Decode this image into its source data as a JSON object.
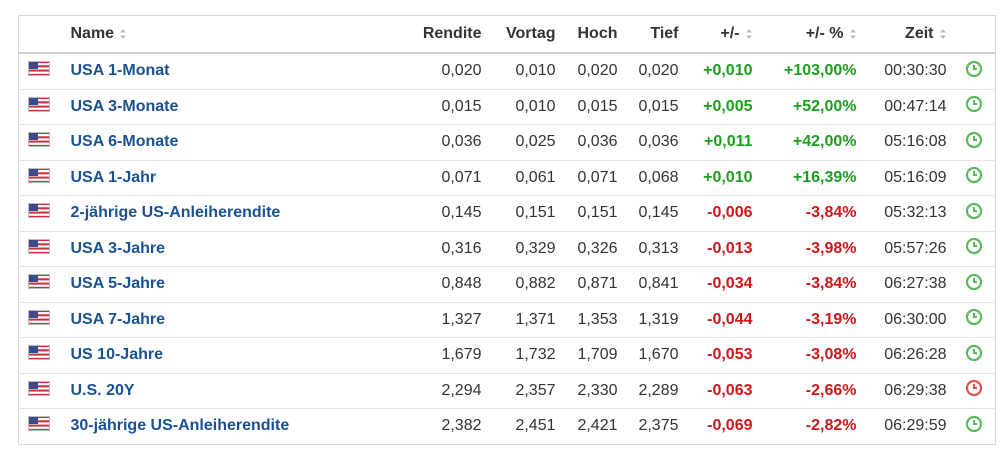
{
  "table": {
    "header": [
      "Name",
      "Rendite",
      "Vortag",
      "Hoch",
      "Tief",
      "+/-",
      "+/- %",
      "Zeit"
    ],
    "sortable": [
      true,
      false,
      false,
      false,
      false,
      true,
      true,
      true
    ],
    "rows": [
      [
        "USA 1-Monat",
        "0,020",
        "0,010",
        "0,020",
        "0,020",
        "+0,010",
        "+103,00%",
        "00:30:30"
      ],
      [
        "USA 3-Monate",
        "0,015",
        "0,010",
        "0,015",
        "0,015",
        "+0,005",
        "+52,00%",
        "00:47:14"
      ],
      [
        "USA 6-Monate",
        "0,036",
        "0,025",
        "0,036",
        "0,036",
        "+0,011",
        "+42,00%",
        "05:16:08"
      ],
      [
        "USA 1-Jahr",
        "0,071",
        "0,061",
        "0,071",
        "0,068",
        "+0,010",
        "+16,39%",
        "05:16:09"
      ],
      [
        "2-jährige US-Anleiherendite",
        "0,145",
        "0,151",
        "0,151",
        "0,145",
        "-0,006",
        "-3,84%",
        "05:32:13"
      ],
      [
        "USA 3-Jahre",
        "0,316",
        "0,329",
        "0,326",
        "0,313",
        "-0,013",
        "-3,98%",
        "05:57:26"
      ],
      [
        "USA 5-Jahre",
        "0,848",
        "0,882",
        "0,871",
        "0,841",
        "-0,034",
        "-3,84%",
        "06:27:38"
      ],
      [
        "USA 7-Jahre",
        "1,327",
        "1,371",
        "1,353",
        "1,319",
        "-0,044",
        "-3,19%",
        "06:30:00"
      ],
      [
        "US 10-Jahre",
        "1,679",
        "1,732",
        "1,709",
        "1,670",
        "-0,053",
        "-3,08%",
        "06:26:28"
      ],
      [
        "U.S. 20Y",
        "2,294",
        "2,357",
        "2,330",
        "2,289",
        "-0,063",
        "-2,66%",
        "06:29:38"
      ],
      [
        "30-jährige US-Anleiherendite",
        "2,382",
        "2,451",
        "2,421",
        "2,375",
        "-0,069",
        "-2,82%",
        "06:29:59"
      ]
    ],
    "clock_colors": [
      "#5cb85c",
      "#5cb85c",
      "#5cb85c",
      "#5cb85c",
      "#5cb85c",
      "#5cb85c",
      "#5cb85c",
      "#5cb85c",
      "#5cb85c",
      "#d9534f",
      "#5cb85c"
    ]
  }
}
